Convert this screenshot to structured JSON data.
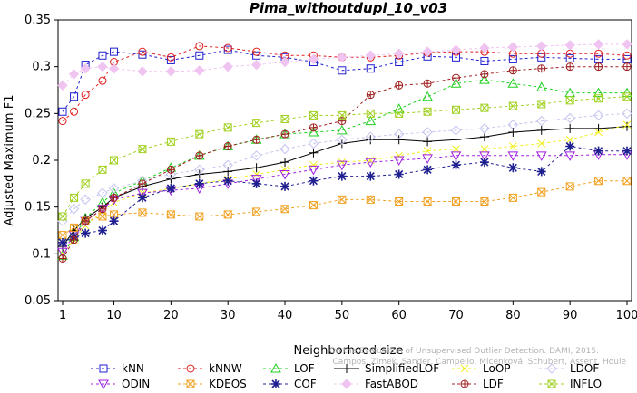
{
  "chart_data": {
    "type": "line",
    "title": "Pima_withoutdupl_10_v03",
    "xlabel": "Neighborhood size",
    "ylabel": "Adjusted Maximum F1",
    "xlim": [
      1,
      100
    ],
    "ylim": [
      0.05,
      0.35
    ],
    "xticks": [
      1,
      10,
      20,
      30,
      40,
      50,
      60,
      70,
      80,
      90,
      100
    ],
    "yticks": [
      0.05,
      0.1,
      0.15,
      0.2,
      0.25,
      0.3,
      0.35
    ],
    "yticklabels": [
      "0.05",
      "0.1",
      "0.15",
      "0.2",
      "0.25",
      "0.3",
      "0.35"
    ],
    "legend_position": "bottom",
    "credit_lines": [
      "Campos, Zimek, Sander, Campello, Micenková, Schubert, Assent, Houle",
      "On the Evaluation of Unsupervised Outlier Detection. DAMI, 2015."
    ],
    "series": [
      {
        "name": "kNN",
        "color": "#1f1fd0",
        "marker": "square",
        "dash": "3,3",
        "points": [
          [
            1,
            0.252
          ],
          [
            3,
            0.268
          ],
          [
            5,
            0.302
          ],
          [
            8,
            0.312
          ],
          [
            10,
            0.316
          ],
          [
            15,
            0.313
          ],
          [
            20,
            0.307
          ],
          [
            25,
            0.312
          ],
          [
            30,
            0.318
          ],
          [
            35,
            0.312
          ],
          [
            40,
            0.31
          ],
          [
            45,
            0.305
          ],
          [
            50,
            0.296
          ],
          [
            55,
            0.298
          ],
          [
            60,
            0.305
          ],
          [
            65,
            0.311
          ],
          [
            70,
            0.31
          ],
          [
            75,
            0.306
          ],
          [
            80,
            0.308
          ],
          [
            85,
            0.31
          ],
          [
            90,
            0.309
          ],
          [
            95,
            0.308
          ],
          [
            100,
            0.308
          ]
        ]
      },
      {
        "name": "kNNW",
        "color": "#e01f1f",
        "marker": "circle",
        "dash": "3,3",
        "points": [
          [
            1,
            0.242
          ],
          [
            3,
            0.252
          ],
          [
            5,
            0.27
          ],
          [
            8,
            0.285
          ],
          [
            10,
            0.305
          ],
          [
            15,
            0.316
          ],
          [
            20,
            0.31
          ],
          [
            25,
            0.322
          ],
          [
            30,
            0.32
          ],
          [
            35,
            0.316
          ],
          [
            40,
            0.312
          ],
          [
            45,
            0.312
          ],
          [
            50,
            0.31
          ],
          [
            55,
            0.31
          ],
          [
            60,
            0.312
          ],
          [
            65,
            0.315
          ],
          [
            70,
            0.316
          ],
          [
            75,
            0.316
          ],
          [
            80,
            0.314
          ],
          [
            85,
            0.314
          ],
          [
            90,
            0.314
          ],
          [
            95,
            0.314
          ],
          [
            100,
            0.312
          ]
        ]
      },
      {
        "name": "LOF",
        "color": "#1fd01f",
        "marker": "triangle-up",
        "dash": "3,3",
        "points": [
          [
            1,
            0.098
          ],
          [
            3,
            0.118
          ],
          [
            5,
            0.138
          ],
          [
            8,
            0.155
          ],
          [
            10,
            0.165
          ],
          [
            15,
            0.178
          ],
          [
            20,
            0.192
          ],
          [
            25,
            0.205
          ],
          [
            30,
            0.215
          ],
          [
            35,
            0.222
          ],
          [
            40,
            0.228
          ],
          [
            45,
            0.23
          ],
          [
            50,
            0.232
          ],
          [
            55,
            0.242
          ],
          [
            60,
            0.255
          ],
          [
            65,
            0.268
          ],
          [
            70,
            0.282
          ],
          [
            75,
            0.286
          ],
          [
            80,
            0.282
          ],
          [
            85,
            0.278
          ],
          [
            90,
            0.272
          ],
          [
            95,
            0.272
          ],
          [
            100,
            0.272
          ]
        ]
      },
      {
        "name": "SimplifiedLOF",
        "color": "#000000",
        "marker": "plus",
        "dash": "",
        "points": [
          [
            1,
            0.108
          ],
          [
            3,
            0.125
          ],
          [
            5,
            0.138
          ],
          [
            8,
            0.15
          ],
          [
            10,
            0.16
          ],
          [
            15,
            0.172
          ],
          [
            20,
            0.18
          ],
          [
            25,
            0.185
          ],
          [
            30,
            0.188
          ],
          [
            35,
            0.192
          ],
          [
            40,
            0.198
          ],
          [
            45,
            0.208
          ],
          [
            50,
            0.218
          ],
          [
            55,
            0.222
          ],
          [
            60,
            0.222
          ],
          [
            65,
            0.22
          ],
          [
            70,
            0.222
          ],
          [
            75,
            0.225
          ],
          [
            80,
            0.23
          ],
          [
            85,
            0.232
          ],
          [
            90,
            0.234
          ],
          [
            95,
            0.234
          ],
          [
            100,
            0.236
          ]
        ]
      },
      {
        "name": "LoOP",
        "color": "#f0f01f",
        "marker": "cross",
        "dash": "3,3",
        "points": [
          [
            1,
            0.1
          ],
          [
            3,
            0.115
          ],
          [
            5,
            0.13
          ],
          [
            8,
            0.145
          ],
          [
            10,
            0.155
          ],
          [
            15,
            0.165
          ],
          [
            20,
            0.17
          ],
          [
            25,
            0.175
          ],
          [
            30,
            0.18
          ],
          [
            35,
            0.185
          ],
          [
            40,
            0.19
          ],
          [
            45,
            0.195
          ],
          [
            50,
            0.198
          ],
          [
            55,
            0.2
          ],
          [
            60,
            0.205
          ],
          [
            65,
            0.21
          ],
          [
            70,
            0.212
          ],
          [
            75,
            0.212
          ],
          [
            80,
            0.215
          ],
          [
            85,
            0.218
          ],
          [
            90,
            0.222
          ],
          [
            95,
            0.23
          ],
          [
            100,
            0.238
          ]
        ]
      },
      {
        "name": "LDOF",
        "color": "#c4c4f0",
        "marker": "diamond",
        "dash": "3,3",
        "points": [
          [
            1,
            0.135
          ],
          [
            3,
            0.148
          ],
          [
            5,
            0.158
          ],
          [
            8,
            0.165
          ],
          [
            10,
            0.17
          ],
          [
            15,
            0.178
          ],
          [
            20,
            0.185
          ],
          [
            25,
            0.19
          ],
          [
            30,
            0.195
          ],
          [
            35,
            0.205
          ],
          [
            40,
            0.212
          ],
          [
            45,
            0.218
          ],
          [
            50,
            0.222
          ],
          [
            55,
            0.225
          ],
          [
            60,
            0.228
          ],
          [
            65,
            0.23
          ],
          [
            70,
            0.232
          ],
          [
            75,
            0.234
          ],
          [
            80,
            0.238
          ],
          [
            85,
            0.242
          ],
          [
            90,
            0.245
          ],
          [
            95,
            0.248
          ],
          [
            100,
            0.25
          ]
        ]
      },
      {
        "name": "ODIN",
        "color": "#a01fe0",
        "marker": "triangle-down",
        "dash": "3,3",
        "points": [
          [
            1,
            0.102
          ],
          [
            3,
            0.12
          ],
          [
            5,
            0.135
          ],
          [
            8,
            0.148
          ],
          [
            10,
            0.158
          ],
          [
            15,
            0.165
          ],
          [
            20,
            0.168
          ],
          [
            25,
            0.17
          ],
          [
            30,
            0.175
          ],
          [
            35,
            0.18
          ],
          [
            40,
            0.185
          ],
          [
            45,
            0.19
          ],
          [
            50,
            0.195
          ],
          [
            55,
            0.198
          ],
          [
            60,
            0.2
          ],
          [
            65,
            0.202
          ],
          [
            70,
            0.205
          ],
          [
            75,
            0.205
          ],
          [
            80,
            0.205
          ],
          [
            85,
            0.205
          ],
          [
            90,
            0.205
          ],
          [
            95,
            0.206
          ],
          [
            100,
            0.206
          ]
        ]
      },
      {
        "name": "KDEOS",
        "color": "#f0a01f",
        "marker": "square-x",
        "dash": "3,3",
        "points": [
          [
            1,
            0.12
          ],
          [
            3,
            0.128
          ],
          [
            5,
            0.135
          ],
          [
            8,
            0.14
          ],
          [
            10,
            0.142
          ],
          [
            15,
            0.144
          ],
          [
            20,
            0.142
          ],
          [
            25,
            0.14
          ],
          [
            30,
            0.142
          ],
          [
            35,
            0.145
          ],
          [
            40,
            0.148
          ],
          [
            45,
            0.152
          ],
          [
            50,
            0.158
          ],
          [
            55,
            0.158
          ],
          [
            60,
            0.156
          ],
          [
            65,
            0.156
          ],
          [
            70,
            0.156
          ],
          [
            75,
            0.156
          ],
          [
            80,
            0.16
          ],
          [
            85,
            0.166
          ],
          [
            90,
            0.172
          ],
          [
            95,
            0.178
          ],
          [
            100,
            0.178
          ]
        ]
      },
      {
        "name": "COF",
        "color": "#1f1f90",
        "marker": "star",
        "dash": "3,3",
        "points": [
          [
            1,
            0.112
          ],
          [
            3,
            0.118
          ],
          [
            5,
            0.122
          ],
          [
            8,
            0.125
          ],
          [
            10,
            0.135
          ],
          [
            15,
            0.16
          ],
          [
            20,
            0.17
          ],
          [
            25,
            0.175
          ],
          [
            30,
            0.178
          ],
          [
            35,
            0.175
          ],
          [
            40,
            0.172
          ],
          [
            45,
            0.178
          ],
          [
            50,
            0.183
          ],
          [
            55,
            0.183
          ],
          [
            60,
            0.185
          ],
          [
            65,
            0.19
          ],
          [
            70,
            0.195
          ],
          [
            75,
            0.198
          ],
          [
            80,
            0.192
          ],
          [
            85,
            0.188
          ],
          [
            90,
            0.215
          ],
          [
            95,
            0.21
          ],
          [
            100,
            0.21
          ]
        ]
      },
      {
        "name": "FastABOD",
        "color": "#f0c4f0",
        "marker": "diamond-filled",
        "dash": "3,3",
        "points": [
          [
            1,
            0.28
          ],
          [
            3,
            0.292
          ],
          [
            5,
            0.298
          ],
          [
            8,
            0.3
          ],
          [
            10,
            0.298
          ],
          [
            15,
            0.295
          ],
          [
            20,
            0.295
          ],
          [
            25,
            0.296
          ],
          [
            30,
            0.3
          ],
          [
            35,
            0.302
          ],
          [
            40,
            0.305
          ],
          [
            45,
            0.308
          ],
          [
            50,
            0.31
          ],
          [
            55,
            0.312
          ],
          [
            60,
            0.314
          ],
          [
            65,
            0.316
          ],
          [
            70,
            0.318
          ],
          [
            75,
            0.32
          ],
          [
            80,
            0.321
          ],
          [
            85,
            0.322
          ],
          [
            90,
            0.323
          ],
          [
            95,
            0.324
          ],
          [
            100,
            0.324
          ]
        ]
      },
      {
        "name": "LDF",
        "color": "#a02020",
        "marker": "circle-plus",
        "dash": "3,3",
        "points": [
          [
            1,
            0.095
          ],
          [
            3,
            0.115
          ],
          [
            5,
            0.135
          ],
          [
            8,
            0.148
          ],
          [
            10,
            0.16
          ],
          [
            15,
            0.175
          ],
          [
            20,
            0.19
          ],
          [
            25,
            0.205
          ],
          [
            30,
            0.215
          ],
          [
            35,
            0.222
          ],
          [
            40,
            0.228
          ],
          [
            45,
            0.235
          ],
          [
            50,
            0.242
          ],
          [
            55,
            0.27
          ],
          [
            60,
            0.28
          ],
          [
            65,
            0.282
          ],
          [
            70,
            0.288
          ],
          [
            75,
            0.292
          ],
          [
            80,
            0.296
          ],
          [
            85,
            0.298
          ],
          [
            90,
            0.3
          ],
          [
            95,
            0.3
          ],
          [
            100,
            0.3
          ]
        ]
      },
      {
        "name": "INFLO",
        "color": "#a0d01f",
        "marker": "asterisk",
        "dash": "3,3",
        "points": [
          [
            1,
            0.14
          ],
          [
            3,
            0.16
          ],
          [
            5,
            0.175
          ],
          [
            8,
            0.19
          ],
          [
            10,
            0.2
          ],
          [
            15,
            0.212
          ],
          [
            20,
            0.22
          ],
          [
            25,
            0.228
          ],
          [
            30,
            0.235
          ],
          [
            35,
            0.24
          ],
          [
            40,
            0.244
          ],
          [
            45,
            0.248
          ],
          [
            50,
            0.248
          ],
          [
            55,
            0.25
          ],
          [
            60,
            0.25
          ],
          [
            65,
            0.252
          ],
          [
            70,
            0.254
          ],
          [
            75,
            0.256
          ],
          [
            80,
            0.258
          ],
          [
            85,
            0.26
          ],
          [
            90,
            0.264
          ],
          [
            95,
            0.266
          ],
          [
            100,
            0.268
          ]
        ]
      }
    ]
  }
}
